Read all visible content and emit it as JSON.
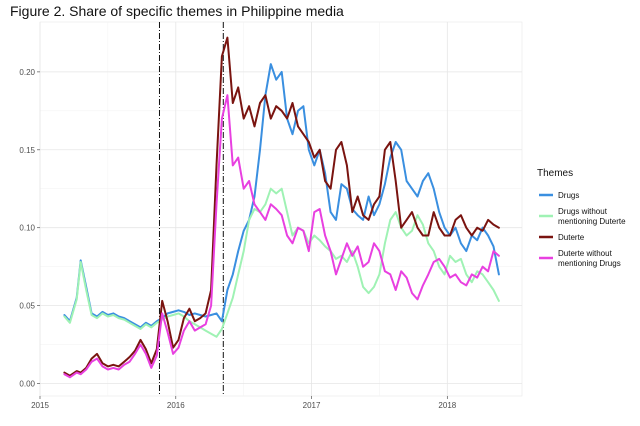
{
  "figure": {
    "title": "Figure 2. Share of specific themes in Philippine media"
  },
  "chart_data": {
    "type": "line",
    "title": "Figure 2. Share of specific themes in Philippine media",
    "xlabel": "",
    "ylabel": "",
    "xlim": [
      2015.0,
      2018.55
    ],
    "ylim": [
      -0.008,
      0.232
    ],
    "x_ticks": [
      2015,
      2016,
      2017,
      2018
    ],
    "x_tick_labels": [
      "2015",
      "2016",
      "2017",
      "2018"
    ],
    "y_ticks": [
      0.0,
      0.05,
      0.1,
      0.15,
      0.2
    ],
    "y_tick_labels": [
      "0.00",
      "0.05",
      "0.10",
      "0.15",
      "0.20"
    ],
    "grid": true,
    "legend": {
      "title": "Themes",
      "placement": "right"
    },
    "vlines": [
      2015.88,
      2016.35
    ],
    "series": [
      {
        "name": "Drugs",
        "color": "#3a8fe0",
        "x": [
          2015.18,
          2015.22,
          2015.27,
          2015.3,
          2015.34,
          2015.38,
          2015.42,
          2015.46,
          2015.5,
          2015.54,
          2015.58,
          2015.62,
          2015.66,
          2015.7,
          2015.74,
          2015.78,
          2015.82,
          2015.86,
          2015.9,
          2015.94,
          2015.98,
          2016.02,
          2016.06,
          2016.1,
          2016.14,
          2016.18,
          2016.22,
          2016.26,
          2016.3,
          2016.34,
          2016.38,
          2016.42,
          2016.46,
          2016.5,
          2016.54,
          2016.58,
          2016.62,
          2016.66,
          2016.7,
          2016.74,
          2016.78,
          2016.82,
          2016.86,
          2016.9,
          2016.94,
          2016.98,
          2017.02,
          2017.06,
          2017.1,
          2017.14,
          2017.18,
          2017.22,
          2017.26,
          2017.3,
          2017.34,
          2017.38,
          2017.42,
          2017.46,
          2017.5,
          2017.54,
          2017.58,
          2017.62,
          2017.66,
          2017.7,
          2017.74,
          2017.78,
          2017.82,
          2017.86,
          2017.9,
          2017.94,
          2017.98,
          2018.02,
          2018.06,
          2018.1,
          2018.14,
          2018.18,
          2018.22,
          2018.26,
          2018.3,
          2018.34,
          2018.38
        ],
        "y": [
          0.044,
          0.04,
          0.055,
          0.079,
          0.062,
          0.045,
          0.043,
          0.046,
          0.044,
          0.045,
          0.043,
          0.042,
          0.04,
          0.038,
          0.036,
          0.039,
          0.037,
          0.04,
          0.042,
          0.045,
          0.046,
          0.047,
          0.046,
          0.044,
          0.045,
          0.044,
          0.043,
          0.044,
          0.045,
          0.04,
          0.06,
          0.07,
          0.085,
          0.098,
          0.105,
          0.12,
          0.15,
          0.185,
          0.205,
          0.195,
          0.2,
          0.17,
          0.16,
          0.175,
          0.178,
          0.15,
          0.14,
          0.15,
          0.135,
          0.11,
          0.105,
          0.128,
          0.125,
          0.112,
          0.108,
          0.105,
          0.12,
          0.108,
          0.115,
          0.128,
          0.145,
          0.155,
          0.15,
          0.13,
          0.125,
          0.12,
          0.13,
          0.135,
          0.125,
          0.11,
          0.1,
          0.095,
          0.1,
          0.09,
          0.085,
          0.095,
          0.092,
          0.1,
          0.095,
          0.088,
          0.07
        ]
      },
      {
        "name": "Drugs without mentioning Duterte",
        "color": "#9ff2b4",
        "x": [
          2015.18,
          2015.22,
          2015.27,
          2015.3,
          2015.34,
          2015.38,
          2015.42,
          2015.46,
          2015.5,
          2015.54,
          2015.58,
          2015.62,
          2015.66,
          2015.7,
          2015.74,
          2015.78,
          2015.82,
          2015.86,
          2015.9,
          2015.94,
          2015.98,
          2016.02,
          2016.06,
          2016.1,
          2016.14,
          2016.18,
          2016.22,
          2016.26,
          2016.3,
          2016.34,
          2016.38,
          2016.42,
          2016.46,
          2016.5,
          2016.54,
          2016.58,
          2016.62,
          2016.66,
          2016.7,
          2016.74,
          2016.78,
          2016.82,
          2016.86,
          2016.9,
          2016.94,
          2016.98,
          2017.02,
          2017.06,
          2017.1,
          2017.14,
          2017.18,
          2017.22,
          2017.26,
          2017.3,
          2017.34,
          2017.38,
          2017.42,
          2017.46,
          2017.5,
          2017.54,
          2017.58,
          2017.62,
          2017.66,
          2017.7,
          2017.74,
          2017.78,
          2017.82,
          2017.86,
          2017.9,
          2017.94,
          2017.98,
          2018.02,
          2018.06,
          2018.1,
          2018.14,
          2018.18,
          2018.22,
          2018.26,
          2018.3,
          2018.34,
          2018.38
        ],
        "y": [
          0.043,
          0.039,
          0.054,
          0.078,
          0.06,
          0.044,
          0.042,
          0.045,
          0.043,
          0.044,
          0.042,
          0.041,
          0.039,
          0.037,
          0.035,
          0.038,
          0.036,
          0.039,
          0.041,
          0.043,
          0.044,
          0.045,
          0.043,
          0.04,
          0.038,
          0.036,
          0.034,
          0.032,
          0.03,
          0.035,
          0.045,
          0.055,
          0.07,
          0.085,
          0.105,
          0.112,
          0.11,
          0.115,
          0.125,
          0.122,
          0.125,
          0.11,
          0.095,
          0.1,
          0.098,
          0.09,
          0.095,
          0.092,
          0.088,
          0.085,
          0.08,
          0.082,
          0.078,
          0.085,
          0.075,
          0.062,
          0.058,
          0.062,
          0.07,
          0.09,
          0.105,
          0.11,
          0.1,
          0.095,
          0.098,
          0.108,
          0.102,
          0.09,
          0.085,
          0.075,
          0.07,
          0.082,
          0.078,
          0.08,
          0.07,
          0.065,
          0.072,
          0.07,
          0.065,
          0.06,
          0.053
        ]
      },
      {
        "name": "Duterte",
        "color": "#7a1410",
        "x": [
          2015.18,
          2015.22,
          2015.27,
          2015.3,
          2015.34,
          2015.38,
          2015.42,
          2015.46,
          2015.5,
          2015.54,
          2015.58,
          2015.62,
          2015.66,
          2015.7,
          2015.74,
          2015.78,
          2015.82,
          2015.86,
          2015.9,
          2015.94,
          2015.98,
          2016.02,
          2016.06,
          2016.1,
          2016.14,
          2016.18,
          2016.22,
          2016.26,
          2016.3,
          2016.34,
          2016.38,
          2016.42,
          2016.46,
          2016.5,
          2016.54,
          2016.58,
          2016.62,
          2016.66,
          2016.7,
          2016.74,
          2016.78,
          2016.82,
          2016.86,
          2016.9,
          2016.94,
          2016.98,
          2017.02,
          2017.06,
          2017.1,
          2017.14,
          2017.18,
          2017.22,
          2017.26,
          2017.3,
          2017.34,
          2017.38,
          2017.42,
          2017.46,
          2017.5,
          2017.54,
          2017.58,
          2017.62,
          2017.66,
          2017.7,
          2017.74,
          2017.78,
          2017.82,
          2017.86,
          2017.9,
          2017.94,
          2017.98,
          2018.02,
          2018.06,
          2018.1,
          2018.14,
          2018.18,
          2018.22,
          2018.26,
          2018.3,
          2018.34,
          2018.38
        ],
        "y": [
          0.007,
          0.005,
          0.008,
          0.007,
          0.01,
          0.016,
          0.019,
          0.013,
          0.011,
          0.012,
          0.011,
          0.014,
          0.017,
          0.021,
          0.028,
          0.022,
          0.013,
          0.022,
          0.053,
          0.04,
          0.023,
          0.028,
          0.042,
          0.048,
          0.04,
          0.042,
          0.045,
          0.06,
          0.14,
          0.21,
          0.222,
          0.18,
          0.19,
          0.17,
          0.178,
          0.165,
          0.18,
          0.185,
          0.17,
          0.178,
          0.175,
          0.17,
          0.18,
          0.165,
          0.16,
          0.155,
          0.145,
          0.15,
          0.13,
          0.125,
          0.15,
          0.155,
          0.14,
          0.11,
          0.12,
          0.108,
          0.105,
          0.115,
          0.12,
          0.15,
          0.155,
          0.13,
          0.1,
          0.105,
          0.11,
          0.1,
          0.095,
          0.095,
          0.11,
          0.1,
          0.095,
          0.095,
          0.105,
          0.108,
          0.1,
          0.095,
          0.1,
          0.098,
          0.105,
          0.102,
          0.1
        ]
      },
      {
        "name": "Duterte without mentioning Drugs",
        "color": "#e840e0",
        "x": [
          2015.18,
          2015.22,
          2015.27,
          2015.3,
          2015.34,
          2015.38,
          2015.42,
          2015.46,
          2015.5,
          2015.54,
          2015.58,
          2015.62,
          2015.66,
          2015.7,
          2015.74,
          2015.78,
          2015.82,
          2015.86,
          2015.9,
          2015.94,
          2015.98,
          2016.02,
          2016.06,
          2016.1,
          2016.14,
          2016.18,
          2016.22,
          2016.26,
          2016.3,
          2016.34,
          2016.38,
          2016.42,
          2016.46,
          2016.5,
          2016.54,
          2016.58,
          2016.62,
          2016.66,
          2016.7,
          2016.74,
          2016.78,
          2016.82,
          2016.86,
          2016.9,
          2016.94,
          2016.98,
          2017.02,
          2017.06,
          2017.1,
          2017.14,
          2017.18,
          2017.22,
          2017.26,
          2017.3,
          2017.34,
          2017.38,
          2017.42,
          2017.46,
          2017.5,
          2017.54,
          2017.58,
          2017.62,
          2017.66,
          2017.7,
          2017.74,
          2017.78,
          2017.82,
          2017.86,
          2017.9,
          2017.94,
          2017.98,
          2018.02,
          2018.06,
          2018.1,
          2018.14,
          2018.18,
          2018.22,
          2018.26,
          2018.3,
          2018.34,
          2018.38
        ],
        "y": [
          0.006,
          0.004,
          0.007,
          0.006,
          0.009,
          0.014,
          0.016,
          0.011,
          0.009,
          0.01,
          0.009,
          0.012,
          0.014,
          0.019,
          0.025,
          0.019,
          0.01,
          0.018,
          0.045,
          0.033,
          0.019,
          0.023,
          0.034,
          0.04,
          0.034,
          0.036,
          0.038,
          0.05,
          0.115,
          0.17,
          0.185,
          0.14,
          0.145,
          0.125,
          0.13,
          0.115,
          0.11,
          0.105,
          0.115,
          0.112,
          0.108,
          0.095,
          0.09,
          0.1,
          0.098,
          0.085,
          0.11,
          0.112,
          0.095,
          0.085,
          0.07,
          0.08,
          0.09,
          0.082,
          0.088,
          0.075,
          0.078,
          0.09,
          0.085,
          0.072,
          0.07,
          0.06,
          0.072,
          0.068,
          0.058,
          0.054,
          0.063,
          0.07,
          0.078,
          0.08,
          0.075,
          0.068,
          0.07,
          0.065,
          0.063,
          0.07,
          0.068,
          0.075,
          0.072,
          0.085,
          0.082
        ]
      }
    ]
  }
}
